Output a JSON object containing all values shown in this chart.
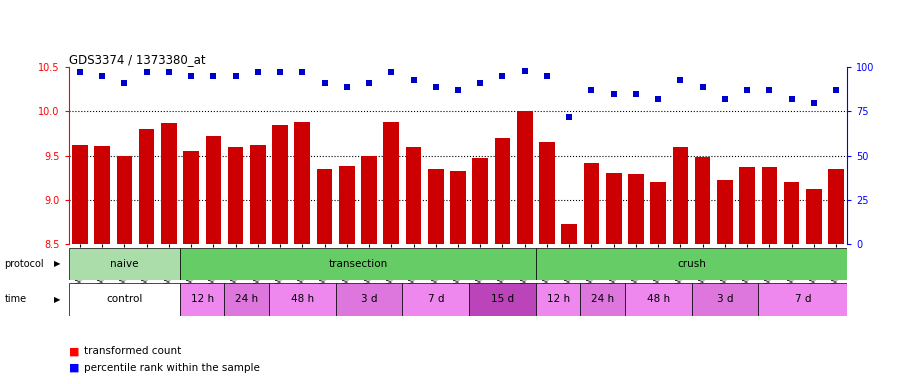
{
  "title": "GDS3374 / 1373380_at",
  "samples": [
    "GSM250998",
    "GSM250999",
    "GSM251000",
    "GSM251001",
    "GSM251002",
    "GSM251003",
    "GSM251004",
    "GSM251005",
    "GSM251006",
    "GSM251007",
    "GSM251008",
    "GSM251009",
    "GSM251010",
    "GSM251011",
    "GSM251012",
    "GSM251013",
    "GSM251014",
    "GSM251015",
    "GSM251016",
    "GSM251017",
    "GSM251018",
    "GSM251019",
    "GSM251020",
    "GSM251021",
    "GSM251022",
    "GSM251023",
    "GSM251024",
    "GSM251025",
    "GSM251026",
    "GSM251027",
    "GSM251028",
    "GSM251029",
    "GSM251030",
    "GSM251031",
    "GSM251032"
  ],
  "bar_values": [
    9.62,
    9.61,
    9.5,
    9.8,
    9.87,
    9.55,
    9.72,
    9.6,
    9.62,
    9.85,
    9.88,
    9.35,
    9.38,
    9.5,
    9.88,
    9.6,
    9.35,
    9.32,
    9.47,
    9.7,
    10.0,
    9.65,
    8.73,
    9.42,
    9.3,
    9.29,
    9.2,
    9.6,
    9.48,
    9.22,
    9.37,
    9.37,
    9.2,
    9.12,
    9.35
  ],
  "percentile_values": [
    97,
    95,
    91,
    97,
    97,
    95,
    95,
    95,
    97,
    97,
    97,
    91,
    89,
    91,
    97,
    93,
    89,
    87,
    91,
    95,
    98,
    95,
    72,
    87,
    85,
    85,
    82,
    93,
    89,
    82,
    87,
    87,
    82,
    80,
    87
  ],
  "bar_color": "#cc0000",
  "dot_color": "#0000cc",
  "ylim_left": [
    8.5,
    10.5
  ],
  "ylim_right": [
    0,
    100
  ],
  "yticks_left": [
    8.5,
    9.0,
    9.5,
    10.0,
    10.5
  ],
  "yticks_right": [
    0,
    25,
    50,
    75,
    100
  ],
  "grid_values": [
    9.0,
    9.5,
    10.0
  ],
  "bg_color": "#ffffff",
  "legend_red": "transformed count",
  "legend_blue": "percentile rank within the sample",
  "proto_blocks": [
    {
      "label": "naive",
      "start": 0,
      "end": 5,
      "color": "#aaddaa"
    },
    {
      "label": "transection",
      "start": 5,
      "end": 21,
      "color": "#66cc66"
    },
    {
      "label": "crush",
      "start": 21,
      "end": 35,
      "color": "#66cc66"
    }
  ],
  "time_blocks": [
    {
      "label": "control",
      "start": 0,
      "end": 5,
      "color": "#ffffff"
    },
    {
      "label": "12 h",
      "start": 5,
      "end": 7,
      "color": "#ee88ee"
    },
    {
      "label": "24 h",
      "start": 7,
      "end": 9,
      "color": "#dd77dd"
    },
    {
      "label": "48 h",
      "start": 9,
      "end": 12,
      "color": "#ee88ee"
    },
    {
      "label": "3 d",
      "start": 12,
      "end": 15,
      "color": "#dd77dd"
    },
    {
      "label": "7 d",
      "start": 15,
      "end": 18,
      "color": "#ee88ee"
    },
    {
      "label": "15 d",
      "start": 18,
      "end": 21,
      "color": "#bb44bb"
    },
    {
      "label": "12 h",
      "start": 21,
      "end": 23,
      "color": "#ee88ee"
    },
    {
      "label": "24 h",
      "start": 23,
      "end": 25,
      "color": "#dd77dd"
    },
    {
      "label": "48 h",
      "start": 25,
      "end": 28,
      "color": "#ee88ee"
    },
    {
      "label": "3 d",
      "start": 28,
      "end": 31,
      "color": "#dd77dd"
    },
    {
      "label": "7 d",
      "start": 31,
      "end": 35,
      "color": "#ee88ee"
    }
  ]
}
